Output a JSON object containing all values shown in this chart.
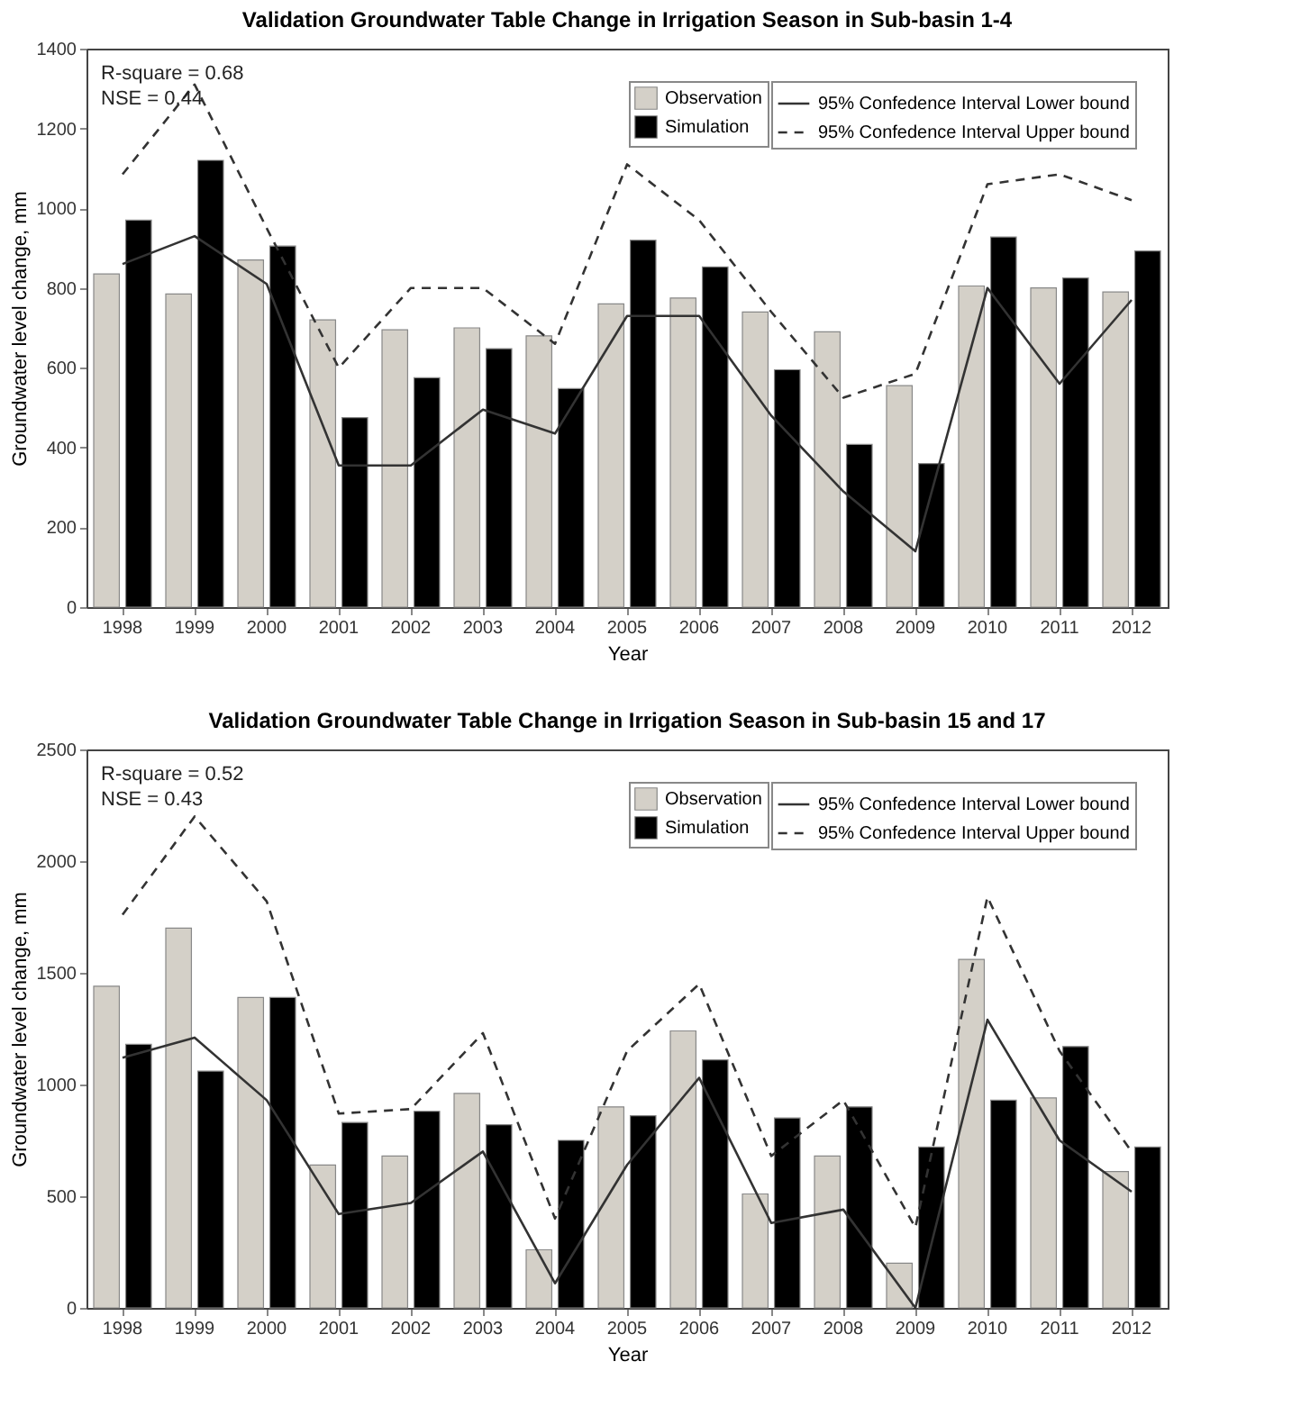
{
  "chart_data": [
    {
      "type": "bar",
      "title": "Validation Groundwater Table Change in Irrigation Season in Sub-basin 1-4",
      "xlabel": "Year",
      "ylabel": "Groundwater level change, mm",
      "categories": [
        "1998",
        "1999",
        "2000",
        "2001",
        "2002",
        "2003",
        "2004",
        "2005",
        "2006",
        "2007",
        "2008",
        "2009",
        "2010",
        "2011",
        "2012"
      ],
      "ylim": [
        0,
        1400
      ],
      "yticks": [
        0,
        200,
        400,
        600,
        800,
        1000,
        1200,
        1400
      ],
      "legend": "top right",
      "annotations": [
        "R-square = 0.68",
        "NSE = 0.44"
      ],
      "series": [
        {
          "name": "Observation",
          "color": "#d4d0c8",
          "values": [
            835,
            785,
            870,
            720,
            695,
            700,
            680,
            760,
            775,
            740,
            690,
            555,
            805,
            800,
            790
          ]
        },
        {
          "name": "Simulation",
          "color": "#000000",
          "values": [
            970,
            1120,
            905,
            475,
            575,
            648,
            548,
            920,
            853,
            595,
            408,
            360,
            928,
            825,
            893
          ]
        },
        {
          "name": "95% Confedence Interval Lower bound",
          "type": "line",
          "line_style": "solid",
          "color": "#333333",
          "values": [
            860,
            930,
            810,
            355,
            355,
            495,
            435,
            730,
            730,
            480,
            290,
            140,
            800,
            560,
            770
          ]
        },
        {
          "name": "95% Confedence Interval Upper bound",
          "type": "line",
          "line_style": "dashed",
          "color": "#333333",
          "values": [
            1085,
            1310,
            950,
            600,
            800,
            800,
            660,
            1110,
            970,
            740,
            525,
            585,
            1060,
            1085,
            1020
          ]
        }
      ]
    },
    {
      "type": "bar",
      "title": "Validation Groundwater Table Change in Irrigation Season in Sub-basin 15 and 17",
      "xlabel": "Year",
      "ylabel": "Groundwater level change, mm",
      "categories": [
        "1998",
        "1999",
        "2000",
        "2001",
        "2002",
        "2003",
        "2004",
        "2005",
        "2006",
        "2007",
        "2008",
        "2009",
        "2010",
        "2011",
        "2012"
      ],
      "ylim": [
        0,
        2500
      ],
      "yticks": [
        0,
        500,
        1000,
        1500,
        2000,
        2500
      ],
      "legend": "top right",
      "annotations": [
        "R-square = 0.52",
        "NSE = 0.43"
      ],
      "series": [
        {
          "name": "Observation",
          "color": "#d4d0c8",
          "values": [
            1440,
            1700,
            1390,
            640,
            680,
            960,
            260,
            900,
            1240,
            510,
            680,
            200,
            1560,
            940,
            610
          ]
        },
        {
          "name": "Simulation",
          "color": "#000000",
          "values": [
            1180,
            1060,
            1390,
            830,
            880,
            820,
            750,
            860,
            1110,
            850,
            900,
            720,
            930,
            1170,
            720
          ]
        },
        {
          "name": "95% Confedence Interval Lower bound",
          "type": "line",
          "line_style": "solid",
          "color": "#333333",
          "values": [
            1120,
            1210,
            930,
            420,
            470,
            700,
            110,
            640,
            1030,
            380,
            440,
            0,
            1290,
            750,
            520
          ]
        },
        {
          "name": "95% Confedence Interval Upper bound",
          "type": "line",
          "line_style": "dashed",
          "color": "#333333",
          "values": [
            1760,
            2200,
            1820,
            870,
            890,
            1230,
            400,
            1150,
            1450,
            680,
            930,
            360,
            1840,
            1150,
            700
          ]
        }
      ]
    }
  ]
}
